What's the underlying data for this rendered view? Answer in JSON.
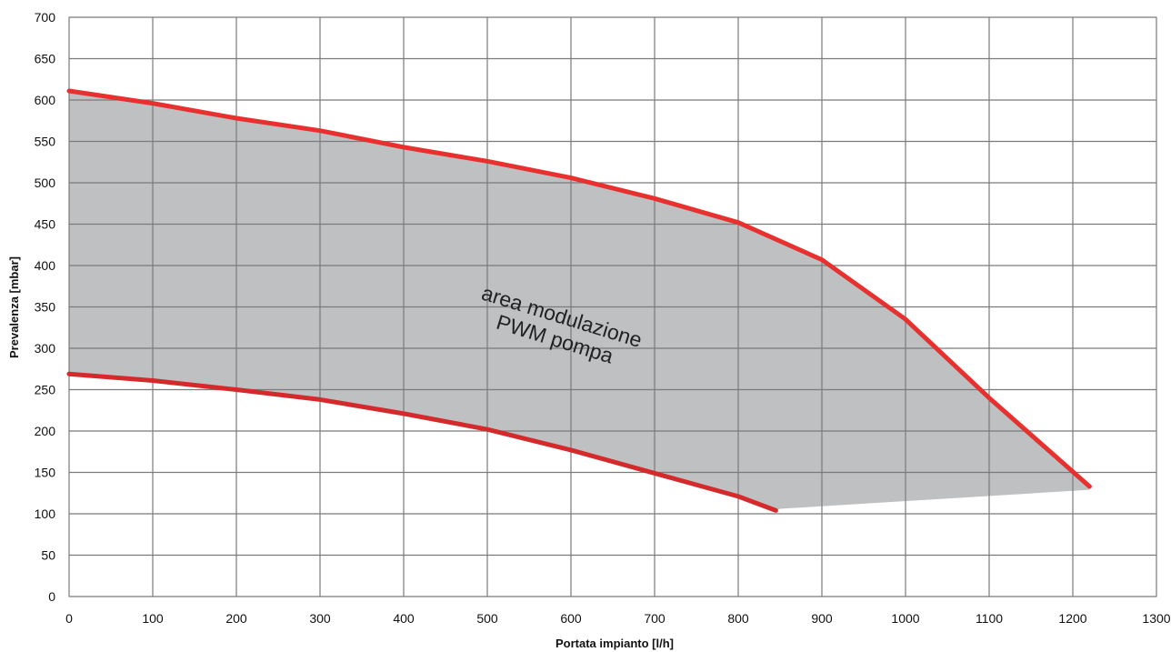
{
  "chart_data": {
    "type": "area",
    "title": "",
    "xlabel": "Portata impianto  [l/h]",
    "ylabel": "Prevalenza [mbar]",
    "xlim": [
      0,
      1300
    ],
    "ylim": [
      0,
      700
    ],
    "xticks": [
      0,
      100,
      200,
      300,
      400,
      500,
      600,
      700,
      800,
      900,
      1000,
      1100,
      1200,
      1300
    ],
    "yticks": [
      0,
      50,
      100,
      150,
      200,
      250,
      300,
      350,
      400,
      450,
      500,
      550,
      600,
      650,
      700
    ],
    "grid": true,
    "series": [
      {
        "role": "upper",
        "color": "#e8302f",
        "points": [
          [
            0,
            611
          ],
          [
            100,
            596
          ],
          [
            200,
            578
          ],
          [
            300,
            563
          ],
          [
            400,
            543
          ],
          [
            500,
            526
          ],
          [
            600,
            506
          ],
          [
            700,
            481
          ],
          [
            800,
            452
          ],
          [
            900,
            407
          ],
          [
            1000,
            335
          ],
          [
            1100,
            240
          ],
          [
            1220,
            133
          ]
        ]
      },
      {
        "role": "lower",
        "color": "#d42a2c",
        "points": [
          [
            0,
            269
          ],
          [
            100,
            261
          ],
          [
            200,
            250
          ],
          [
            300,
            238
          ],
          [
            400,
            221
          ],
          [
            500,
            202
          ],
          [
            600,
            177
          ],
          [
            700,
            149
          ],
          [
            800,
            121
          ],
          [
            845,
            104
          ]
        ]
      }
    ],
    "band": {
      "color": "#bfc0c2",
      "closing_segment": [
        [
          850,
          106
        ],
        [
          1220,
          129
        ]
      ]
    },
    "annotations": [
      {
        "lines": [
          "area modulazione",
          "PWM pompa"
        ],
        "x": 585,
        "y": 325,
        "rotation": 17
      }
    ]
  }
}
